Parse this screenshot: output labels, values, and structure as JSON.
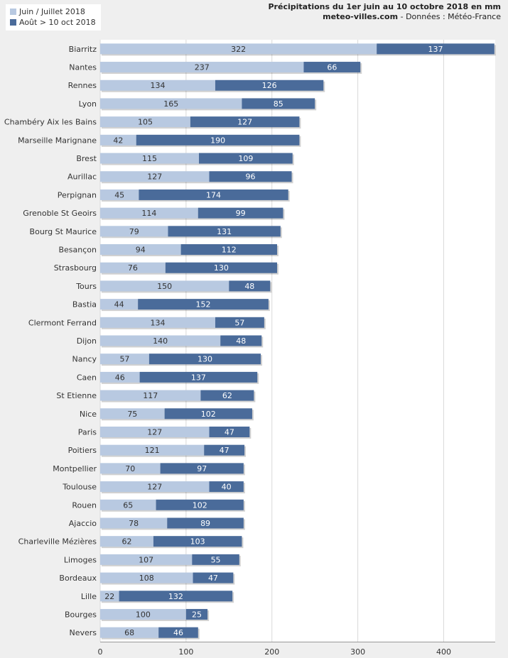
{
  "header": {
    "title": "Précipitations du 1er juin au 10 octobre 2018 en mm",
    "site": "meteo-villes.com",
    "separator": " - ",
    "source": "Données : Météo-France"
  },
  "colors": {
    "series1": "#b8c9e1",
    "series2": "#4a6b9a",
    "plot_bg": "#ffffff",
    "grid": "#d9d9d9"
  },
  "chart_data": {
    "type": "bar",
    "orientation": "horizontal",
    "stacked": true,
    "title": "Précipitations du 1er juin au 10 octobre 2018 en mm",
    "categories": [
      "Biarritz",
      "Nantes",
      "Rennes",
      "Lyon",
      "Chambéry Aix les Bains",
      "Marseille Marignane",
      "Brest",
      "Aurillac",
      "Perpignan",
      "Grenoble St Geoirs",
      "Bourg St Maurice",
      "Besançon",
      "Strasbourg",
      "Tours",
      "Bastia",
      "Clermont Ferrand",
      "Dijon",
      "Nancy",
      "Caen",
      "St Etienne",
      "Nice",
      "Paris",
      "Poitiers",
      "Montpellier",
      "Toulouse",
      "Rouen",
      "Ajaccio",
      "Charleville Mézières",
      "Limoges",
      "Bordeaux",
      "Lille",
      "Bourges",
      "Nevers"
    ],
    "series": [
      {
        "name": "Juin / Juillet 2018",
        "values": [
          322,
          237,
          134,
          165,
          105,
          42,
          115,
          127,
          45,
          114,
          79,
          94,
          76,
          150,
          44,
          134,
          140,
          57,
          46,
          117,
          75,
          127,
          121,
          70,
          127,
          65,
          78,
          62,
          107,
          108,
          22,
          100,
          68
        ]
      },
      {
        "name": "Août > 10 oct 2018",
        "values": [
          137,
          66,
          126,
          85,
          127,
          190,
          109,
          96,
          174,
          99,
          131,
          112,
          130,
          48,
          152,
          57,
          48,
          130,
          137,
          62,
          102,
          47,
          47,
          97,
          40,
          102,
          89,
          103,
          55,
          47,
          132,
          25,
          46
        ]
      }
    ],
    "xlim": [
      0,
      460
    ],
    "ticks": [
      0,
      100,
      200,
      300,
      400
    ],
    "grid": true,
    "legend_position": "top-left"
  }
}
